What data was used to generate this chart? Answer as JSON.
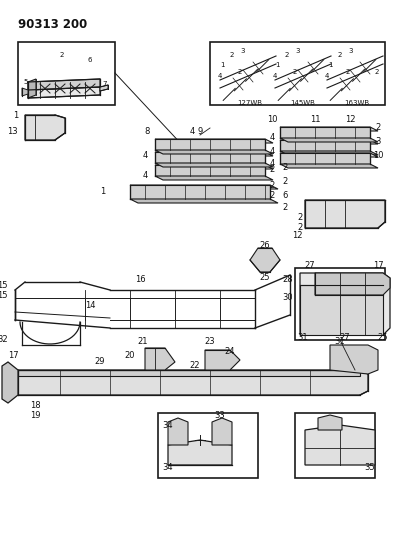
{
  "title": "90313 200",
  "bg_color": "#ffffff",
  "line_color": "#1a1a1a",
  "text_color": "#111111",
  "title_fontsize": 8.5,
  "label_fontsize": 6.0,
  "small_fontsize": 5.0,
  "figsize": [
    3.97,
    5.33
  ],
  "dpi": 100,
  "xlim": [
    0,
    397
  ],
  "ylim": [
    0,
    533
  ]
}
